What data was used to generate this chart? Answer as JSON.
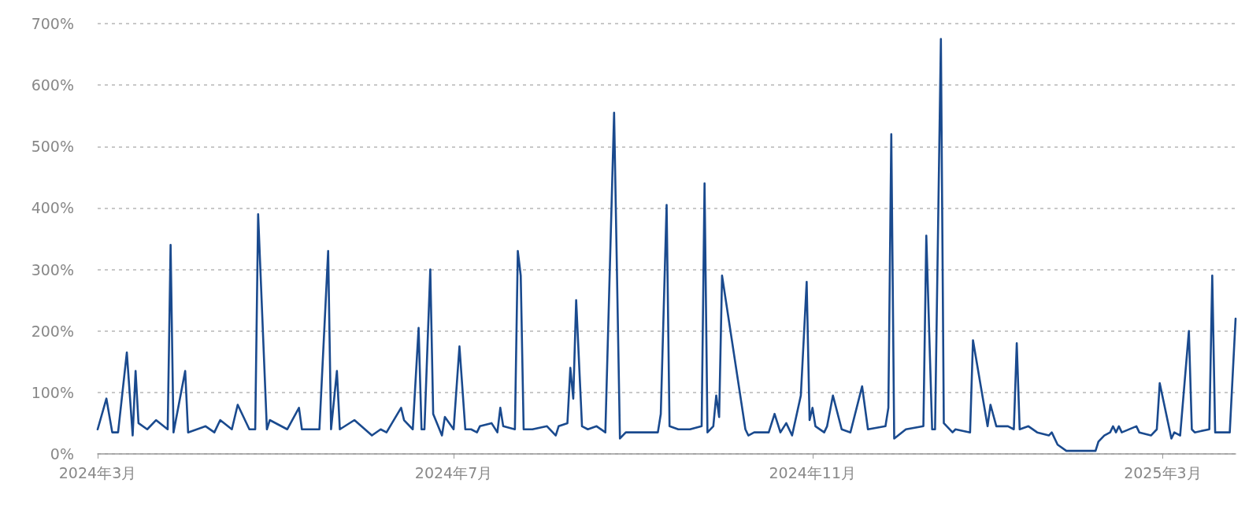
{
  "chart_data": {
    "type": "line",
    "x": [
      "2024-03-01",
      "2024-03-04",
      "2024-03-06",
      "2024-03-08",
      "2024-03-11",
      "2024-03-13",
      "2024-03-14",
      "2024-03-15",
      "2024-03-18",
      "2024-03-21",
      "2024-03-25",
      "2024-03-26",
      "2024-03-27",
      "2024-03-31",
      "2024-04-01",
      "2024-04-07",
      "2024-04-10",
      "2024-04-12",
      "2024-04-16",
      "2024-04-18",
      "2024-04-22",
      "2024-04-24",
      "2024-04-25",
      "2024-04-28",
      "2024-04-29",
      "2024-05-05",
      "2024-05-09",
      "2024-05-10",
      "2024-05-13",
      "2024-05-16",
      "2024-05-19",
      "2024-05-20",
      "2024-05-22",
      "2024-05-23",
      "2024-05-28",
      "2024-06-03",
      "2024-06-06",
      "2024-06-08",
      "2024-06-13",
      "2024-06-14",
      "2024-06-17",
      "2024-06-19",
      "2024-06-20",
      "2024-06-21",
      "2024-06-23",
      "2024-06-24",
      "2024-06-27",
      "2024-06-28",
      "2024-07-01",
      "2024-07-03",
      "2024-07-05",
      "2024-07-07",
      "2024-07-09",
      "2024-07-10",
      "2024-07-14",
      "2024-07-16",
      "2024-07-17",
      "2024-07-18",
      "2024-07-22",
      "2024-07-23",
      "2024-07-24",
      "2024-07-25",
      "2024-07-28",
      "2024-08-02",
      "2024-08-05",
      "2024-08-06",
      "2024-08-09",
      "2024-08-10",
      "2024-08-11",
      "2024-08-12",
      "2024-08-14",
      "2024-08-16",
      "2024-08-19",
      "2024-08-22",
      "2024-08-25",
      "2024-08-27",
      "2024-08-29",
      "2024-09-04",
      "2024-09-09",
      "2024-09-10",
      "2024-09-12",
      "2024-09-13",
      "2024-09-16",
      "2024-09-20",
      "2024-09-24",
      "2024-09-25",
      "2024-09-26",
      "2024-09-28",
      "2024-09-29",
      "2024-09-30",
      "2024-10-01",
      "2024-10-09",
      "2024-10-10",
      "2024-10-12",
      "2024-10-17",
      "2024-10-19",
      "2024-10-21",
      "2024-10-23",
      "2024-10-25",
      "2024-10-28",
      "2024-10-30",
      "2024-10-31",
      "2024-11-01",
      "2024-11-02",
      "2024-11-05",
      "2024-11-06",
      "2024-11-08",
      "2024-11-11",
      "2024-11-14",
      "2024-11-18",
      "2024-11-20",
      "2024-11-26",
      "2024-11-27",
      "2024-11-28",
      "2024-11-29",
      "2024-12-03",
      "2024-12-09",
      "2024-12-10",
      "2024-12-12",
      "2024-12-13",
      "2024-12-15",
      "2024-12-16",
      "2024-12-19",
      "2024-12-20",
      "2024-12-25",
      "2024-12-26",
      "2024-12-31",
      "2025-01-01",
      "2025-01-03",
      "2025-01-07",
      "2025-01-09",
      "2025-01-10",
      "2025-01-11",
      "2025-01-14",
      "2025-01-17",
      "2025-01-21",
      "2025-01-22",
      "2025-01-24",
      "2025-01-27",
      "2025-02-06",
      "2025-02-07",
      "2025-02-09",
      "2025-02-11",
      "2025-02-12",
      "2025-02-13",
      "2025-02-14",
      "2025-02-15",
      "2025-02-20",
      "2025-02-21",
      "2025-02-25",
      "2025-02-27",
      "2025-02-28",
      "2025-03-04",
      "2025-03-05",
      "2025-03-07",
      "2025-03-10",
      "2025-03-11",
      "2025-03-12",
      "2025-03-17",
      "2025-03-18",
      "2025-03-19",
      "2025-03-24",
      "2025-03-26"
    ],
    "series": [
      {
        "color": "#1a4a8e",
        "values": [
          40,
          90,
          35,
          35,
          165,
          30,
          135,
          50,
          40,
          55,
          40,
          340,
          35,
          135,
          35,
          45,
          35,
          55,
          40,
          80,
          40,
          40,
          390,
          40,
          55,
          40,
          75,
          40,
          40,
          40,
          330,
          40,
          135,
          40,
          55,
          30,
          40,
          35,
          75,
          55,
          40,
          205,
          40,
          40,
          300,
          65,
          30,
          60,
          40,
          175,
          40,
          40,
          35,
          45,
          50,
          35,
          75,
          45,
          40,
          330,
          290,
          40,
          40,
          45,
          30,
          45,
          50,
          140,
          90,
          250,
          45,
          40,
          45,
          35,
          555,
          25,
          35,
          35,
          35,
          65,
          405,
          45,
          40,
          40,
          45,
          440,
          35,
          45,
          95,
          60,
          290,
          40,
          30,
          35,
          35,
          65,
          35,
          50,
          30,
          95,
          280,
          55,
          75,
          45,
          35,
          45,
          95,
          40,
          35,
          110,
          40,
          45,
          75,
          520,
          25,
          40,
          45,
          355,
          40,
          40,
          675,
          50,
          35,
          40,
          35,
          185,
          45,
          80,
          45,
          45,
          40,
          180,
          40,
          45,
          35,
          30,
          35,
          15,
          5,
          5,
          20,
          30,
          35,
          45,
          35,
          45,
          35,
          45,
          35,
          30,
          40,
          115,
          25,
          35,
          30,
          200,
          40,
          35,
          40,
          290,
          35,
          35,
          220
        ]
      }
    ],
    "xlim": [
      "2024-03-01",
      "2025-03-26"
    ],
    "xticks": [
      {
        "value": "2024-03-01",
        "label": "2024年3月"
      },
      {
        "value": "2024-07-01",
        "label": "2024年7月"
      },
      {
        "value": "2024-11-01",
        "label": "2024年11月"
      },
      {
        "value": "2025-03-01",
        "label": "2025年3月"
      }
    ],
    "ylim": [
      0,
      700
    ],
    "yticks": [
      {
        "value": 0,
        "label": "0%"
      },
      {
        "value": 100,
        "label": "100%"
      },
      {
        "value": 200,
        "label": "200%"
      },
      {
        "value": 300,
        "label": "300%"
      },
      {
        "value": 400,
        "label": "400%"
      },
      {
        "value": 500,
        "label": "500%"
      },
      {
        "value": 600,
        "label": "600%"
      },
      {
        "value": 700,
        "label": "700%"
      }
    ],
    "grid": "y",
    "marker": "none",
    "line_style": "solid"
  }
}
